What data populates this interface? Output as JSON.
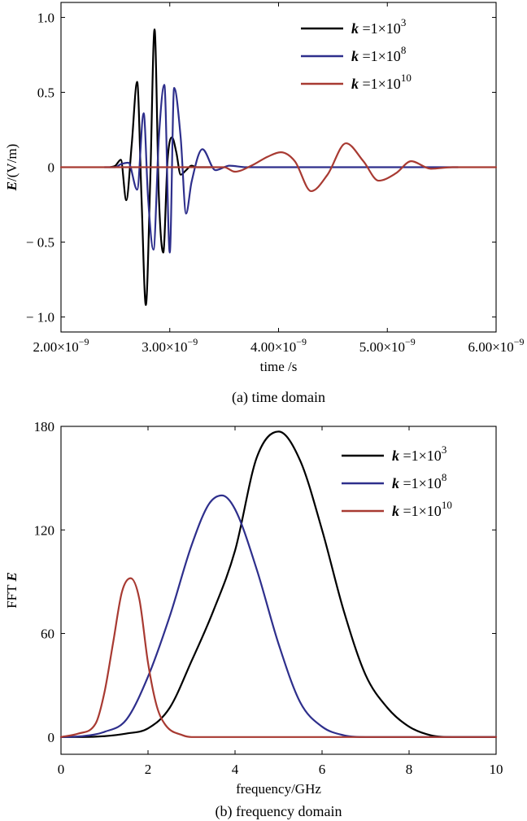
{
  "chart_data": [
    {
      "type": "line",
      "caption": "(a) time domain",
      "xlabel": "time /s",
      "ylabel_var": "E",
      "ylabel_unit": "/(V/m)",
      "xlim": [
        2e-09,
        6e-09
      ],
      "ylim": [
        -1.1,
        1.1
      ],
      "x_ticks": [
        2e-09,
        3e-09,
        4e-09,
        5e-09,
        6e-09
      ],
      "x_tick_labels": [
        {
          "mant": "2.00×10",
          "exp": "−9"
        },
        {
          "mant": "3.00×10",
          "exp": "−9"
        },
        {
          "mant": "4.00×10",
          "exp": "−9"
        },
        {
          "mant": "5.00×10",
          "exp": "−9"
        },
        {
          "mant": "6.00×10",
          "exp": "−9"
        }
      ],
      "y_ticks": [
        1.0,
        0.5,
        0,
        -0.5,
        -1.0
      ],
      "y_tick_labels": [
        "1.0",
        "0.5",
        "0",
        "− 0.5",
        "− 1.0"
      ],
      "legend_position": "top-right",
      "series": [
        {
          "name": {
            "var": "k",
            "text": " =1×10",
            "exp": "3"
          },
          "color": "#000000",
          "x": [
            2.45e-09,
            2.5e-09,
            2.55e-09,
            2.6e-09,
            2.65e-09,
            2.7e-09,
            2.74e-09,
            2.78e-09,
            2.82e-09,
            2.86e-09,
            2.9e-09,
            2.94e-09,
            2.98e-09,
            3.02e-09,
            3.06e-09,
            3.1e-09,
            3.15e-09,
            3.2e-09,
            3.25e-09,
            3.3e-09,
            3.4e-09
          ],
          "y": [
            0,
            0.01,
            0.05,
            -0.22,
            0.15,
            0.57,
            -0.2,
            -0.92,
            -0.1,
            0.92,
            -0.2,
            -0.57,
            0.05,
            0.2,
            0.1,
            -0.05,
            -0.02,
            0.01,
            0,
            0,
            0
          ]
        },
        {
          "name": {
            "var": "k",
            "text": " =1×10",
            "exp": "8"
          },
          "color": "#2e2f8c",
          "x": [
            2.4e-09,
            2.5e-09,
            2.55e-09,
            2.62e-09,
            2.7e-09,
            2.76e-09,
            2.8e-09,
            2.85e-09,
            2.9e-09,
            2.95e-09,
            3e-09,
            3.04e-09,
            3.1e-09,
            3.15e-09,
            3.2e-09,
            3.3e-09,
            3.42e-09,
            3.55e-09,
            3.7e-09,
            4e-09,
            5e-09,
            5.65e-09
          ],
          "y": [
            0,
            0,
            0.02,
            0.03,
            -0.15,
            0.36,
            -0.2,
            -0.55,
            0.2,
            0.55,
            -0.57,
            0.53,
            0.2,
            -0.31,
            -0.1,
            0.12,
            -0.02,
            0.01,
            0,
            0,
            0,
            0
          ]
        },
        {
          "name": {
            "var": "k",
            "text": " =1×10",
            "exp": "10"
          },
          "color": "#a83a32",
          "x": [
            2e-09,
            3.5e-09,
            3.6e-09,
            3.75e-09,
            3.9e-09,
            4.02e-09,
            4.15e-09,
            4.3e-09,
            4.45e-09,
            4.62e-09,
            4.78e-09,
            4.92e-09,
            5.08e-09,
            5.22e-09,
            5.4e-09,
            5.6e-09,
            6e-09
          ],
          "y": [
            0,
            0,
            -0.03,
            0.01,
            0.07,
            0.1,
            0.04,
            -0.16,
            -0.05,
            0.16,
            0.04,
            -0.09,
            -0.04,
            0.04,
            -0.01,
            0,
            0
          ]
        }
      ]
    },
    {
      "type": "line",
      "caption": "(b) frequency domain",
      "xlabel": "frequency/GHz",
      "ylabel_prefix": "FFT ",
      "ylabel_var": "E",
      "xlim": [
        0,
        10
      ],
      "ylim": [
        -10,
        180
      ],
      "x_ticks": [
        0,
        2,
        4,
        6,
        8,
        10
      ],
      "x_tick_labels": [
        "0",
        "2",
        "4",
        "6",
        "8",
        "10"
      ],
      "y_ticks": [
        0,
        60,
        120,
        180
      ],
      "y_tick_labels": [
        "0",
        "60",
        "120",
        "180"
      ],
      "legend_position": "top-right",
      "series": [
        {
          "name": {
            "var": "k",
            "text": " =1×10",
            "exp": "3"
          },
          "color": "#000000",
          "x": [
            0.0,
            0.5,
            1.0,
            1.5,
            2.0,
            2.5,
            3.0,
            3.5,
            4.0,
            4.5,
            5.0,
            5.5,
            6.0,
            6.5,
            7.0,
            7.5,
            8.0,
            8.5,
            9.0,
            10.0
          ],
          "y": [
            0,
            0,
            0.5,
            2,
            5,
            17,
            44,
            73,
            108,
            162,
            177,
            160,
            120,
            73,
            36,
            17,
            6,
            1,
            0,
            0
          ]
        },
        {
          "name": {
            "var": "k",
            "text": " =1×10",
            "exp": "8"
          },
          "color": "#2e2f8c",
          "x": [
            0.0,
            0.5,
            1.0,
            1.5,
            2.0,
            2.5,
            3.0,
            3.4,
            3.7,
            4.0,
            4.5,
            5.0,
            5.5,
            6.0,
            6.5,
            7.0,
            8.0,
            10.0
          ],
          "y": [
            0,
            0.5,
            3,
            10,
            35,
            70,
            111,
            135,
            140,
            132,
            97,
            54,
            20,
            6,
            1,
            0,
            0,
            0
          ]
        },
        {
          "name": {
            "var": "k",
            "text": " =1×10",
            "exp": "10"
          },
          "color": "#a83a32",
          "x": [
            0.0,
            0.4,
            0.8,
            1.0,
            1.2,
            1.4,
            1.6,
            1.8,
            2.0,
            2.2,
            2.4,
            2.8,
            3.0,
            4.0,
            10.0
          ],
          "y": [
            0,
            2,
            8,
            26,
            55,
            84,
            92,
            80,
            43,
            18,
            7,
            1,
            0,
            0,
            0
          ]
        }
      ]
    }
  ]
}
